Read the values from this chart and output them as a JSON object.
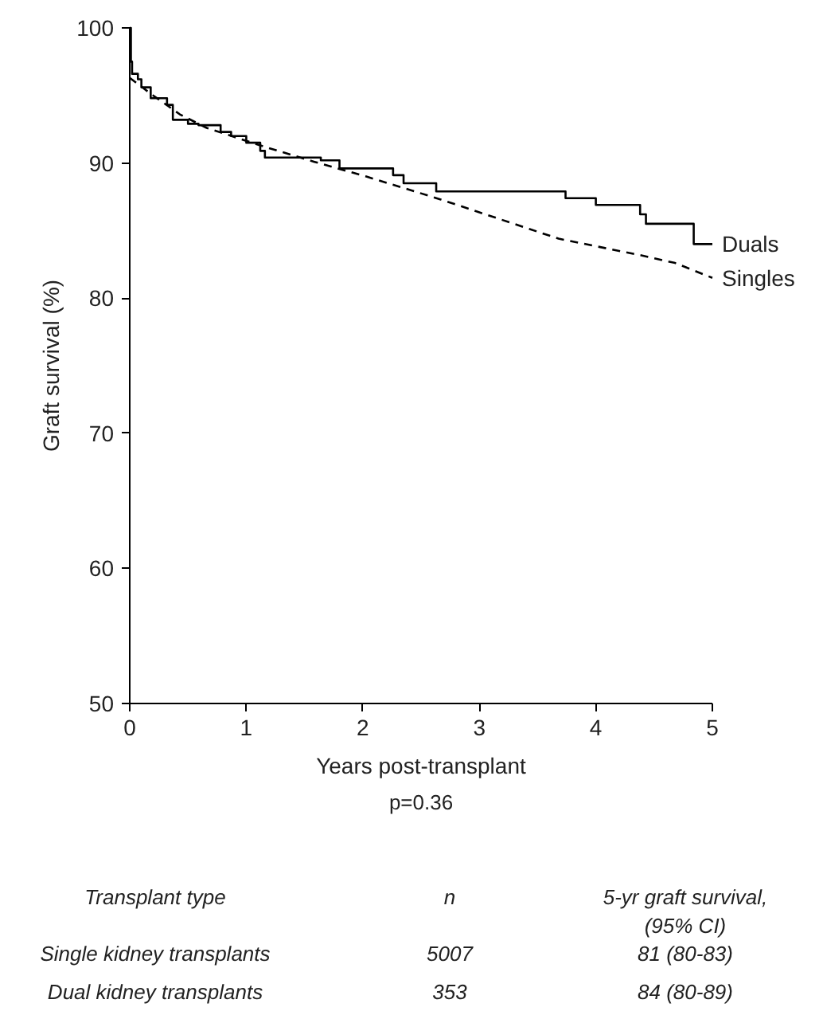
{
  "chart_data": {
    "type": "step",
    "xlabel": "Years post-transplant",
    "ylabel": "Graft survival (%)",
    "xlim": [
      0,
      5
    ],
    "ylim": [
      50,
      100
    ],
    "xticks": [
      0,
      1,
      2,
      3,
      4,
      5
    ],
    "yticks": [
      50,
      60,
      70,
      80,
      90,
      100
    ],
    "grid": false,
    "series": [
      {
        "name": "Duals",
        "color": "#000000",
        "line_style": "solid",
        "x": [
          0,
          0.01,
          0.02,
          0.07,
          0.1,
          0.18,
          0.32,
          0.37,
          0.5,
          0.59,
          0.78,
          0.87,
          1.0,
          1.12,
          1.16,
          1.64,
          1.8,
          2.26,
          2.35,
          2.63,
          3.74,
          4.0,
          4.38,
          4.43,
          4.84,
          5.0
        ],
        "values": [
          100,
          97.5,
          96.6,
          96.2,
          95.6,
          94.8,
          94.3,
          93.2,
          92.9,
          92.8,
          92.3,
          92.0,
          91.5,
          90.9,
          90.4,
          90.2,
          89.6,
          89.1,
          88.5,
          87.9,
          87.4,
          86.9,
          86.2,
          85.5,
          84.0,
          84.0
        ]
      },
      {
        "name": "Singles",
        "color": "#000000",
        "line_style": "dashed",
        "type": "line",
        "x": [
          0,
          0.2,
          0.43,
          0.66,
          1.12,
          1.58,
          2.03,
          2.67,
          3.68,
          4.37,
          4.68,
          5.0
        ],
        "values": [
          96.3,
          95.0,
          93.6,
          92.6,
          91.3,
          90.1,
          89.0,
          87.3,
          84.4,
          83.2,
          82.6,
          81.5
        ]
      }
    ],
    "annotations": [
      "p=0.36",
      "Transplant type",
      "n",
      "5-yr graft survival,\n(95% CI)",
      "Single kidney transplants",
      "5007",
      "81 (80-83)",
      "Dual kidney transplants",
      "353",
      "84 (80-89)"
    ]
  }
}
